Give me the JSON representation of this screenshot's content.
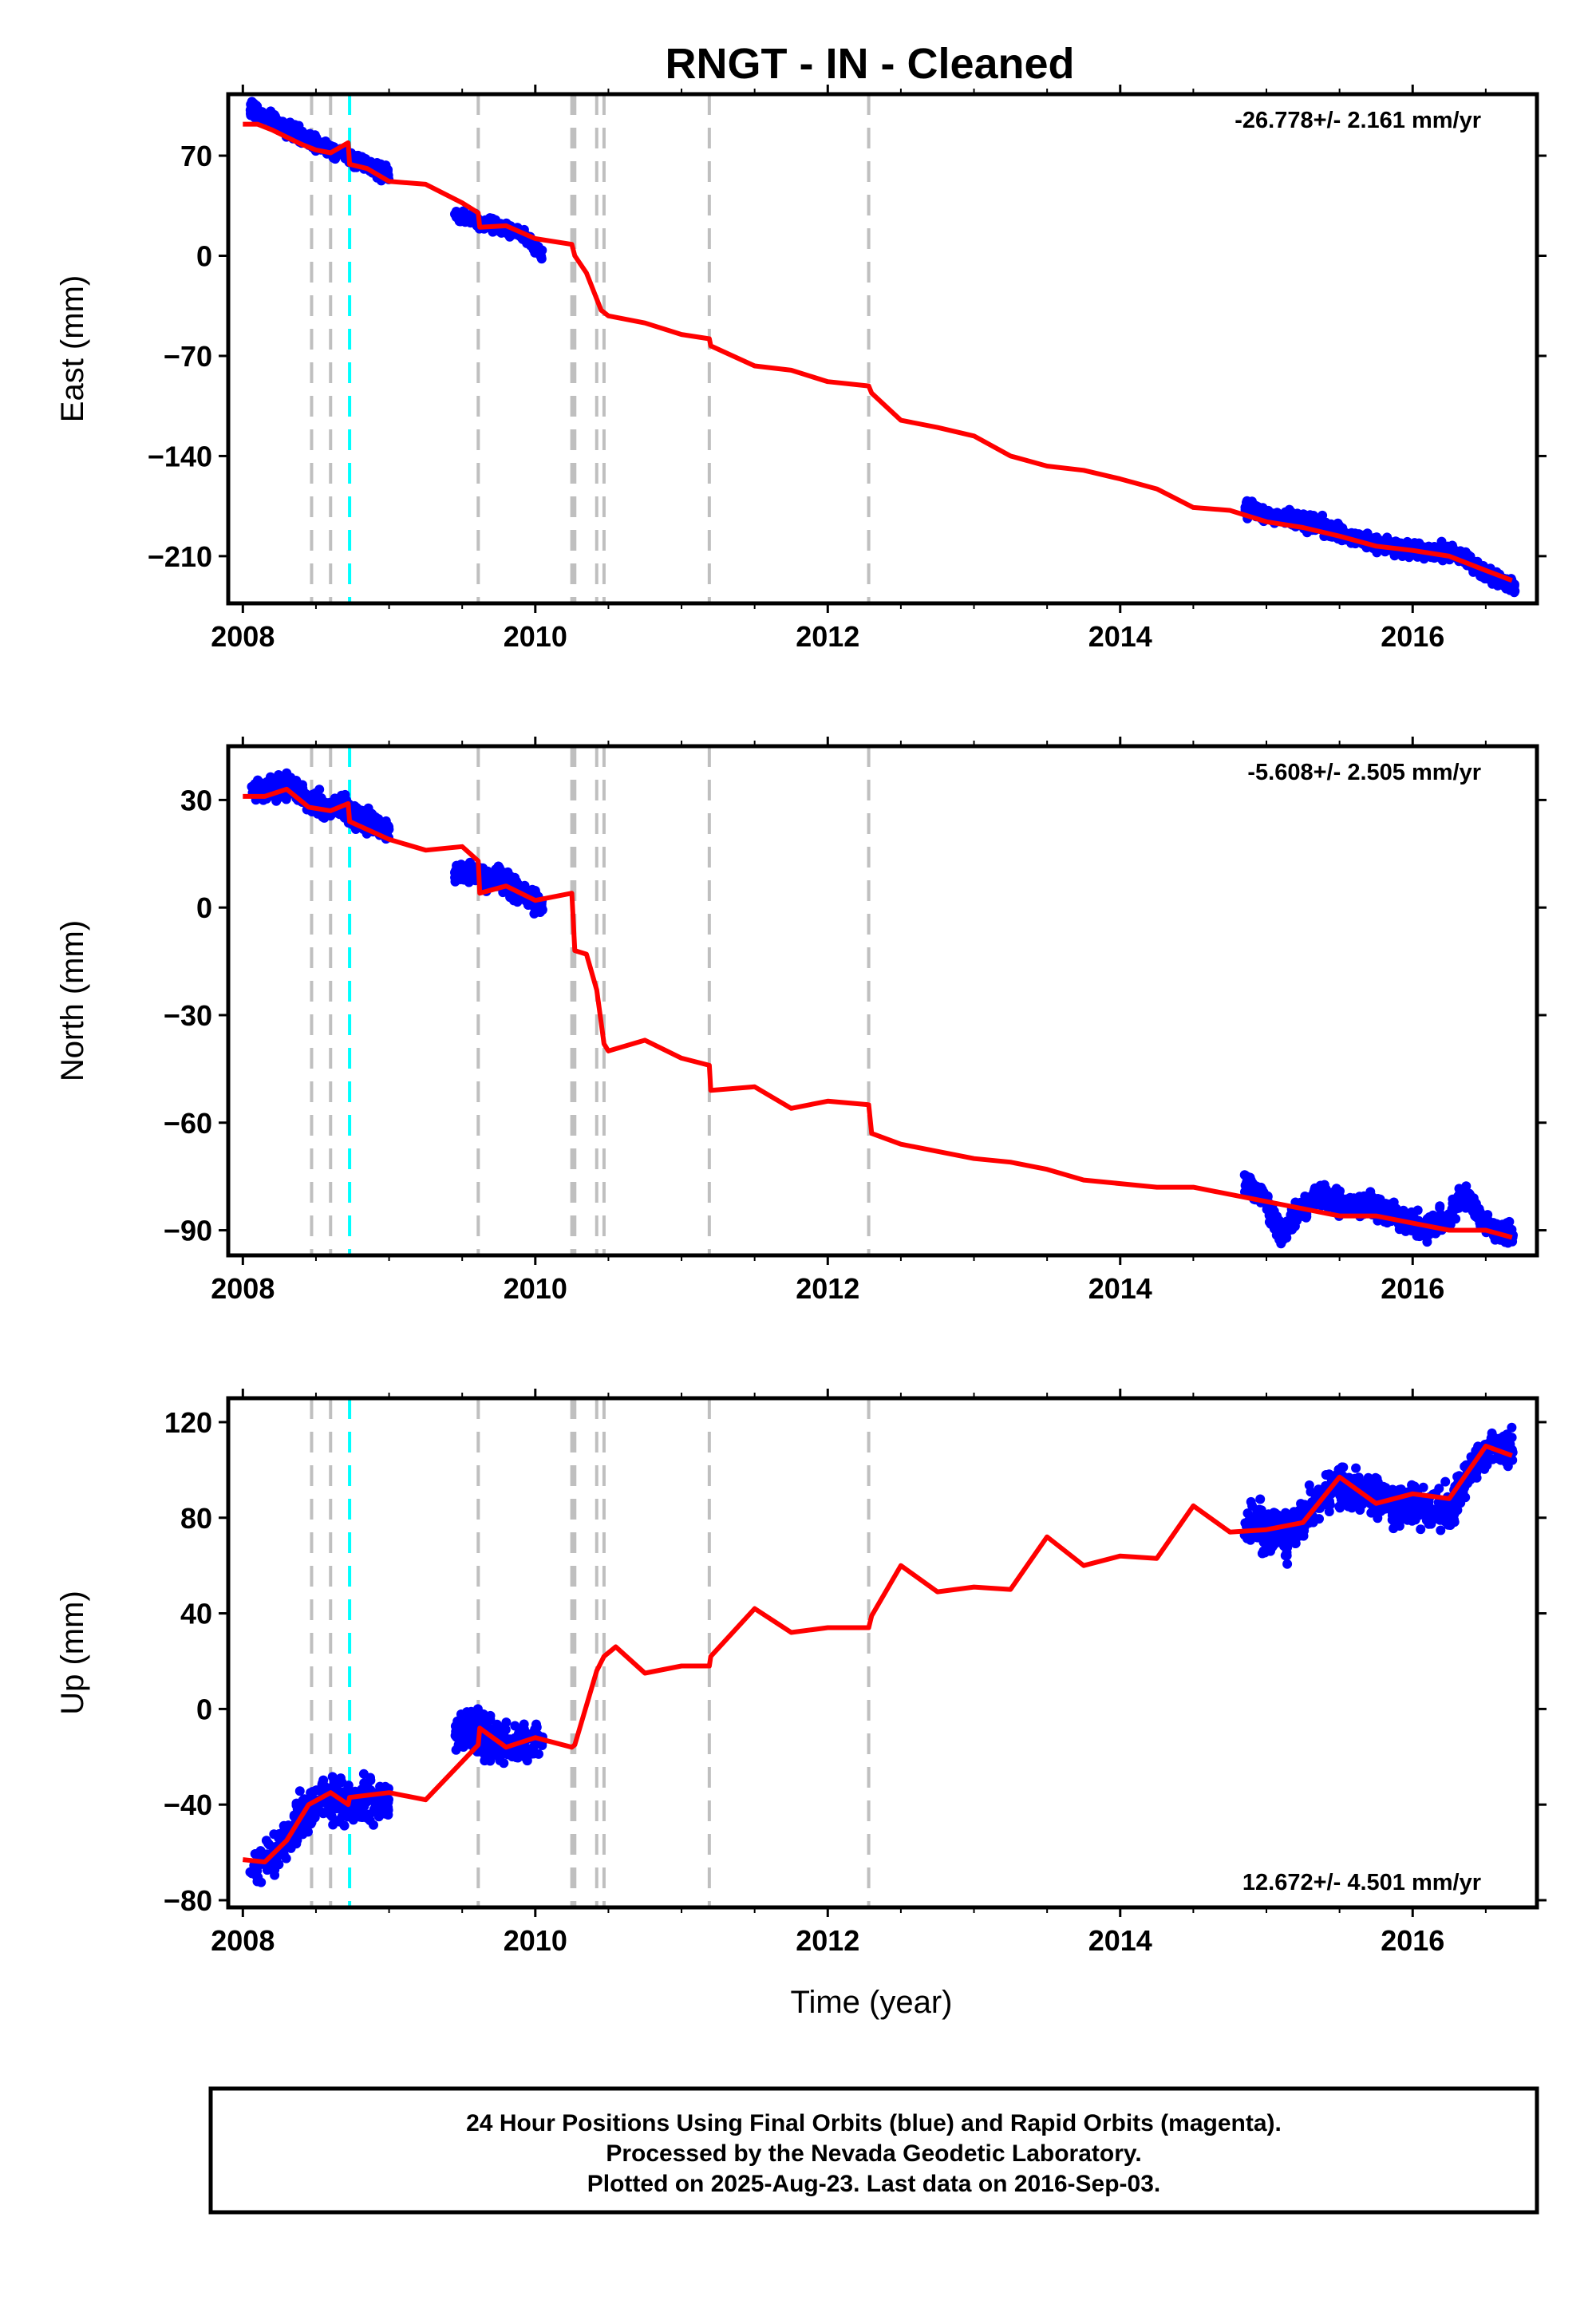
{
  "title": "RNGT  - IN - Cleaned",
  "xlabel": "Time (year)",
  "footer": {
    "line1": "24 Hour Positions Using Final Orbits (blue) and Rapid Orbits (magenta).",
    "line2": "Processed by the Nevada Geodetic Laboratory.",
    "line3": "Plotted on 2025-Aug-23. Last data on 2016-Sep-03."
  },
  "colors": {
    "final_orbits": "#0000ff",
    "model": "#ff0000",
    "event_lines": "#bfbfbf",
    "antenna_change": "#00ffff",
    "frame": "#000000"
  },
  "chart_data": [
    {
      "type": "scatter",
      "component": "east",
      "ylabel": "East (mm)",
      "rate": "-26.778+/- 2.161 mm/yr",
      "rate_position": "top-right",
      "xlim": [
        2007.9,
        2016.85
      ],
      "ylim": [
        -243,
        113
      ],
      "xticks": [
        2008,
        2010,
        2012,
        2014,
        2016
      ],
      "yticks": [
        70,
        0,
        -70,
        -140,
        -210
      ],
      "grid": false,
      "event_lines": [
        2008.47,
        2008.6,
        2009.61,
        2010.25,
        2010.27,
        2010.42,
        2010.47,
        2011.19,
        2012.28
      ],
      "antenna_change_lines": [
        2008.73
      ],
      "series": [
        {
          "style": "points",
          "segments": [
            {
              "x": [
                2008.05,
                2008.15,
                2008.25,
                2008.35,
                2008.45,
                2008.55,
                2008.65,
                2008.75,
                2008.85,
                2008.95,
                2009.0
              ],
              "y": [
                104,
                98,
                92,
                86,
                80,
                76,
                73,
                69,
                64,
                59,
                56
              ],
              "noise": 5
            },
            {
              "x": [
                2009.45,
                2009.55,
                2009.65,
                2009.75,
                2009.85,
                2009.95,
                2010.05
              ],
              "y": [
                28,
                26,
                22,
                20,
                17,
                12,
                0
              ],
              "noise": 4
            },
            {
              "x": [
                2014.85,
                2015.1,
                2015.35,
                2015.6,
                2015.85,
                2016.1,
                2016.3,
                2016.5,
                2016.7
              ],
              "y": [
                -177,
                -183,
                -188,
                -197,
                -204,
                -207,
                -207,
                -222,
                -232
              ],
              "noise": 5
            }
          ]
        },
        {
          "style": "line",
          "x": [
            2008.0,
            2008.1,
            2008.2,
            2008.3,
            2008.4,
            2008.5,
            2008.6,
            2008.72,
            2008.73,
            2008.85,
            2009.0,
            2009.25,
            2009.5,
            2009.61,
            2009.62,
            2009.8,
            2010.0,
            2010.25,
            2010.27,
            2010.35,
            2010.45,
            2010.5,
            2010.75,
            2011.0,
            2011.19,
            2011.2,
            2011.5,
            2011.75,
            2012.0,
            2012.28,
            2012.3,
            2012.5,
            2012.75,
            2013.0,
            2013.25,
            2013.5,
            2013.75,
            2014.0,
            2014.25,
            2014.5,
            2014.75,
            2015.0,
            2015.25,
            2015.5,
            2015.75,
            2016.0,
            2016.25,
            2016.5,
            2016.68
          ],
          "y": [
            92,
            92,
            88,
            83,
            78,
            74,
            72,
            79,
            64,
            61,
            52,
            50,
            37,
            30,
            20,
            21,
            12,
            8,
            0,
            -12,
            -38,
            -42,
            -47,
            -55,
            -58,
            -63,
            -77,
            -80,
            -88,
            -91,
            -96,
            -115,
            -120,
            -126,
            -140,
            -147,
            -150,
            -156,
            -163,
            -176,
            -178,
            -186,
            -190,
            -196,
            -203,
            -206,
            -210,
            -220,
            -227
          ]
        }
      ]
    },
    {
      "type": "scatter",
      "component": "north",
      "ylabel": "North (mm)",
      "rate": "-5.608+/- 2.505 mm/yr",
      "rate_position": "top-right",
      "xlim": [
        2007.9,
        2016.85
      ],
      "ylim": [
        -97,
        45
      ],
      "xticks": [
        2008,
        2010,
        2012,
        2014,
        2016
      ],
      "yticks": [
        30,
        0,
        -30,
        -60,
        -90
      ],
      "grid": false,
      "event_lines": [
        2008.47,
        2008.6,
        2009.61,
        2010.25,
        2010.27,
        2010.42,
        2010.47,
        2011.19,
        2012.28
      ],
      "antenna_change_lines": [
        2008.73
      ],
      "series": [
        {
          "style": "points",
          "segments": [
            {
              "x": [
                2008.05,
                2008.15,
                2008.25,
                2008.35,
                2008.45,
                2008.55,
                2008.65,
                2008.75,
                2008.85,
                2008.95,
                2009.0
              ],
              "y": [
                32,
                33,
                34,
                34,
                30,
                28,
                28,
                26,
                24,
                22,
                21
              ],
              "noise": 3
            },
            {
              "x": [
                2009.45,
                2009.55,
                2009.65,
                2009.75,
                2009.85,
                2009.95,
                2010.05
              ],
              "y": [
                10,
                10,
                8,
                8,
                6,
                3,
                1
              ],
              "noise": 3
            },
            {
              "x": [
                2014.85,
                2015.0,
                2015.1,
                2015.2,
                2015.35,
                2015.5,
                2015.7,
                2015.9,
                2016.1,
                2016.25,
                2016.35,
                2016.5,
                2016.7
              ],
              "y": [
                -76,
                -82,
                -92,
                -86,
                -80,
                -82,
                -83,
                -86,
                -90,
                -86,
                -80,
                -88,
                -92
              ],
              "noise": 3
            }
          ]
        },
        {
          "style": "line",
          "x": [
            2008.0,
            2008.15,
            2008.3,
            2008.45,
            2008.6,
            2008.72,
            2008.73,
            2009.0,
            2009.25,
            2009.5,
            2009.61,
            2009.62,
            2009.8,
            2010.0,
            2010.25,
            2010.27,
            2010.35,
            2010.42,
            2010.47,
            2010.5,
            2010.75,
            2011.0,
            2011.19,
            2011.2,
            2011.5,
            2011.75,
            2012.0,
            2012.28,
            2012.3,
            2012.5,
            2012.75,
            2013.0,
            2013.25,
            2013.5,
            2013.75,
            2014.0,
            2014.25,
            2014.5,
            2014.75,
            2015.0,
            2015.25,
            2015.5,
            2015.75,
            2016.0,
            2016.25,
            2016.5,
            2016.68
          ],
          "y": [
            31,
            31,
            33,
            28,
            27,
            29,
            24,
            19,
            16,
            17,
            13,
            4,
            6,
            2,
            4,
            -12,
            -13,
            -23,
            -38,
            -40,
            -37,
            -42,
            -44,
            -51,
            -50,
            -56,
            -54,
            -55,
            -63,
            -66,
            -68,
            -70,
            -71,
            -73,
            -76,
            -77,
            -78,
            -78,
            -80,
            -82,
            -84,
            -86,
            -86,
            -88,
            -90,
            -90,
            -92
          ]
        }
      ]
    },
    {
      "type": "scatter",
      "component": "up",
      "ylabel": "Up (mm)",
      "rate": "12.672+/- 4.501 mm/yr",
      "rate_position": "bottom-right",
      "xlim": [
        2007.9,
        2016.85
      ],
      "ylim": [
        -83,
        130
      ],
      "xticks": [
        2008,
        2010,
        2012,
        2014,
        2016
      ],
      "yticks": [
        120,
        80,
        40,
        0,
        -40,
        -80
      ],
      "grid": false,
      "event_lines": [
        2008.47,
        2008.6,
        2009.61,
        2010.25,
        2010.27,
        2010.42,
        2010.47,
        2011.19,
        2012.28
      ],
      "antenna_change_lines": [
        2008.73
      ],
      "series": [
        {
          "style": "points",
          "segments": [
            {
              "x": [
                2008.05,
                2008.15,
                2008.25,
                2008.35,
                2008.45,
                2008.55,
                2008.65,
                2008.75,
                2008.85,
                2008.95,
                2009.0
              ],
              "y": [
                -68,
                -64,
                -58,
                -50,
                -42,
                -36,
                -38,
                -40,
                -38,
                -40,
                -38
              ],
              "noise": 8
            },
            {
              "x": [
                2009.45,
                2009.55,
                2009.65,
                2009.75,
                2009.85,
                2009.95,
                2010.05
              ],
              "y": [
                -10,
                -8,
                -12,
                -14,
                -15,
                -14,
                -12
              ],
              "noise": 8
            },
            {
              "x": [
                2014.85,
                2015.0,
                2015.15,
                2015.3,
                2015.45,
                2015.6,
                2015.75,
                2015.9,
                2016.1,
                2016.25,
                2016.4,
                2016.55,
                2016.7
              ],
              "y": [
                77,
                75,
                72,
                84,
                93,
                92,
                90,
                85,
                84,
                82,
                100,
                110,
                108
              ],
              "noise": 8
            }
          ]
        },
        {
          "style": "line",
          "x": [
            2008.0,
            2008.15,
            2008.3,
            2008.45,
            2008.6,
            2008.72,
            2008.73,
            2009.0,
            2009.25,
            2009.5,
            2009.61,
            2009.62,
            2009.8,
            2010.0,
            2010.25,
            2010.27,
            2010.42,
            2010.47,
            2010.55,
            2010.75,
            2011.0,
            2011.19,
            2011.2,
            2011.5,
            2011.75,
            2012.0,
            2012.28,
            2012.3,
            2012.5,
            2012.75,
            2013.0,
            2013.25,
            2013.5,
            2013.75,
            2014.0,
            2014.25,
            2014.5,
            2014.75,
            2015.0,
            2015.25,
            2015.5,
            2015.75,
            2016.0,
            2016.25,
            2016.5,
            2016.68
          ],
          "y": [
            -63,
            -64,
            -55,
            -40,
            -35,
            -40,
            -37,
            -35,
            -38,
            -22,
            -15,
            -8,
            -16,
            -12,
            -16,
            -15,
            16,
            22,
            26,
            15,
            18,
            18,
            22,
            42,
            32,
            34,
            34,
            39,
            60,
            49,
            51,
            50,
            72,
            60,
            64,
            63,
            85,
            74,
            75,
            78,
            97,
            86,
            90,
            88,
            110,
            106
          ]
        }
      ]
    }
  ]
}
